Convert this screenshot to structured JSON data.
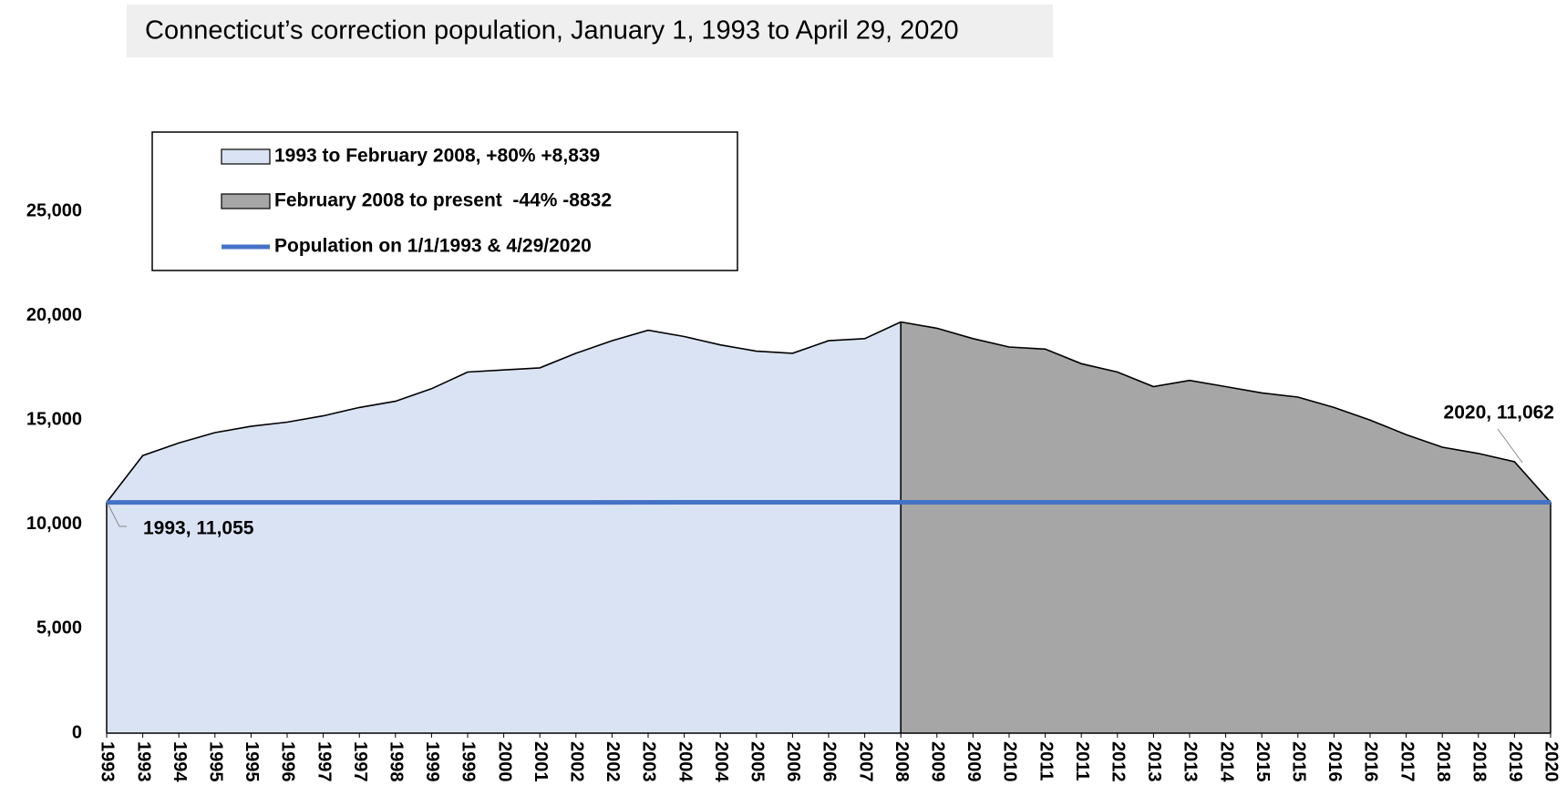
{
  "chart_data": {
    "type": "area",
    "title": "Connecticut’s correction population, January 1, 1993 to April 29, 2020",
    "categories": [
      "1993",
      "1993",
      "1994",
      "1995",
      "1995",
      "1996",
      "1997",
      "1997",
      "1998",
      "1999",
      "1999",
      "2000",
      "2001",
      "2002",
      "2002",
      "2003",
      "2004",
      "2004",
      "2005",
      "2006",
      "2006",
      "2007",
      "2008",
      "2009",
      "2009",
      "2010",
      "2011",
      "2011",
      "2012",
      "2013",
      "2013",
      "2014",
      "2015",
      "2015",
      "2016",
      "2016",
      "2017",
      "2018",
      "2018",
      "2019",
      "2020"
    ],
    "series": [
      {
        "name": "1993 to February 2008, +80% +8,839",
        "color": "#dae3f3",
        "values": [
          11055,
          13300,
          13900,
          14400,
          14700,
          14900,
          15200,
          15600,
          15900,
          16500,
          17300,
          17400,
          17500,
          18200,
          18800,
          19300,
          19000,
          18600,
          18300,
          18200,
          18800,
          18900,
          19700,
          null,
          null,
          null,
          null,
          null,
          null,
          null,
          null,
          null,
          null,
          null,
          null,
          null,
          null,
          null,
          null,
          null,
          null
        ]
      },
      {
        "name": "February 2008 to present  -44% -8832",
        "color": "#a6a6a6",
        "values": [
          null,
          null,
          null,
          null,
          null,
          null,
          null,
          null,
          null,
          null,
          null,
          null,
          null,
          null,
          null,
          null,
          null,
          null,
          null,
          null,
          null,
          null,
          19700,
          19400,
          18900,
          18500,
          18400,
          17700,
          17300,
          16600,
          16900,
          16600,
          16300,
          16100,
          15600,
          15000,
          14300,
          13700,
          13400,
          13000,
          11062
        ]
      }
    ],
    "reference_line": {
      "name": "Population on 1/1/1993 & 4/29/2020",
      "color": "#4472c4",
      "values": [
        11055,
        11062
      ]
    },
    "annotations": [
      "1993, 11,055",
      "2020, 11,062"
    ],
    "ylim": [
      0,
      25000
    ],
    "yticks": [
      {
        "value": 0,
        "label": "0"
      },
      {
        "value": 5000,
        "label": "5,000"
      },
      {
        "value": 10000,
        "label": "10,000"
      },
      {
        "value": 15000,
        "label": "15,000"
      },
      {
        "value": 20000,
        "label": "20,000"
      },
      {
        "value": 25000,
        "label": "25,000"
      }
    ],
    "grid": false
  }
}
